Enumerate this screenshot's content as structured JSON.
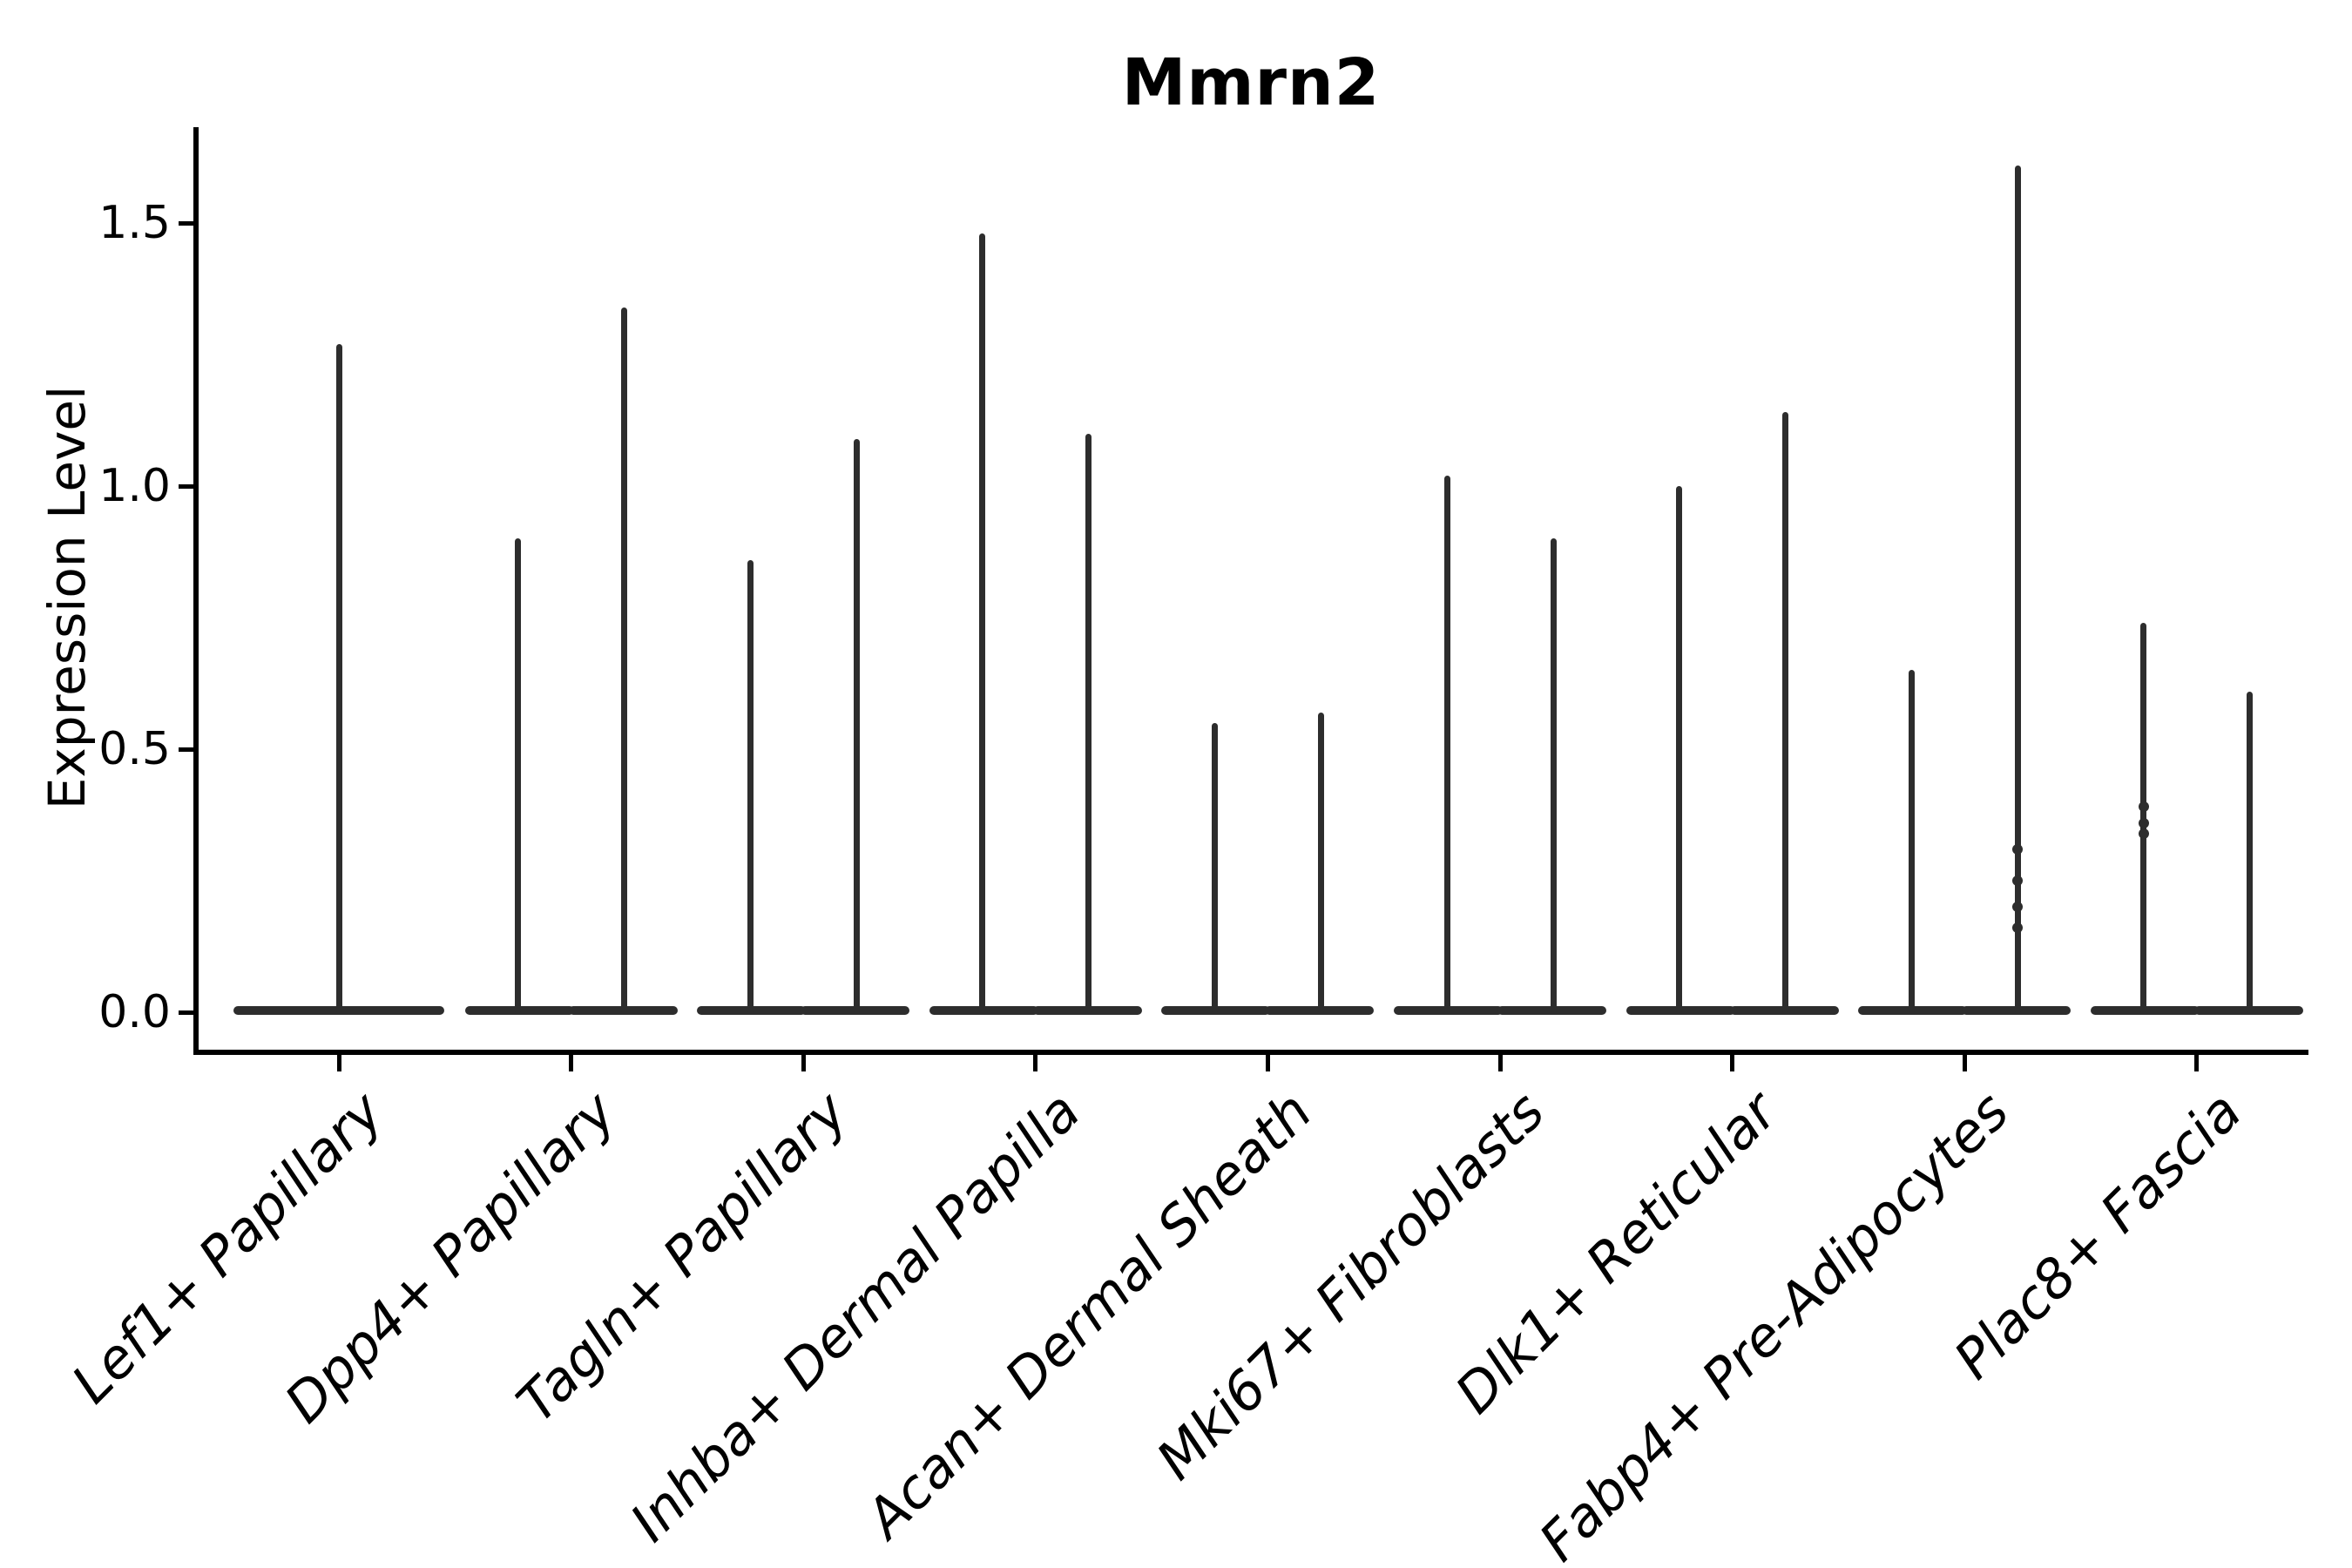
{
  "figure": {
    "title": "Mmrn2",
    "ylabel": "Expression Level"
  },
  "chart_data": {
    "type": "violin",
    "title": "Mmrn2",
    "xlabel": "",
    "ylabel": "Expression Level",
    "ylim": [
      -0.08,
      1.68
    ],
    "grid": false,
    "legend": "none",
    "ytick_labels": [
      "0.0",
      "0.5",
      "1.0",
      "1.5"
    ],
    "ytick_values": [
      0.0,
      0.5,
      1.0,
      1.5
    ],
    "categories": [
      "Lef1+ Papillary",
      "Dpp4+ Papillary",
      "Tagln+ Papillary",
      "Inhba+ Dermal Papilla",
      "Acan+ Dermal Sheath",
      "Mki67+ Fibroblasts",
      "Dlk1+ Reticular",
      "Fabp4+ Pre-Adipocytes",
      "Plac8+ Fascia"
    ],
    "violins": [
      {
        "category": "Lef1+ Papillary",
        "group_maxima": [
          1.27
        ],
        "dots": [
          []
        ]
      },
      {
        "category": "Dpp4+ Papillary",
        "group_maxima": [
          0.9,
          1.34
        ],
        "dots": [
          [],
          []
        ]
      },
      {
        "category": "Tagln+ Papillary",
        "group_maxima": [
          0.86,
          1.09
        ],
        "dots": [
          [],
          []
        ]
      },
      {
        "category": "Inhba+ Dermal Papilla",
        "group_maxima": [
          1.48,
          1.1
        ],
        "dots": [
          [],
          []
        ]
      },
      {
        "category": "Acan+ Dermal Sheath",
        "group_maxima": [
          0.55,
          0.57
        ],
        "dots": [
          [],
          []
        ]
      },
      {
        "category": "Mki67+ Fibroblasts",
        "group_maxima": [
          1.02,
          0.9
        ],
        "dots": [
          [],
          []
        ]
      },
      {
        "category": "Dlk1+ Reticular",
        "group_maxima": [
          1.0,
          1.14
        ],
        "dots": [
          [],
          []
        ]
      },
      {
        "category": "Fabp4+ Pre-Adipocytes",
        "group_maxima": [
          0.65,
          1.61
        ],
        "dots": [
          [],
          [
            0.31,
            0.25,
            0.2,
            0.16
          ]
        ]
      },
      {
        "category": "Plac8+ Fascia",
        "group_maxima": [
          0.74,
          0.61
        ],
        "dots": [
          [
            0.39,
            0.36,
            0.34
          ],
          []
        ]
      }
    ],
    "violin_color": "#2d2d2d",
    "axis_color": "#000000",
    "background_color": "#ffffff"
  }
}
